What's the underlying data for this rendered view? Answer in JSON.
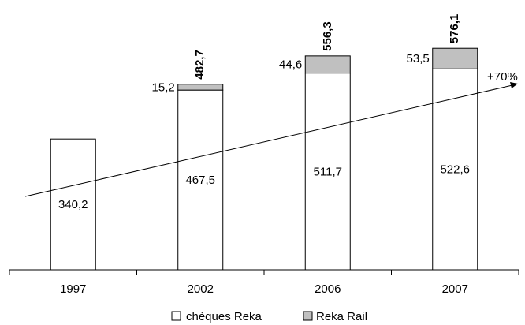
{
  "chart_data": {
    "type": "bar",
    "stacked": true,
    "categories": [
      "1997",
      "2002",
      "2006",
      "2007"
    ],
    "series": [
      {
        "name": "chèques Reka",
        "values": [
          340.2,
          467.5,
          511.7,
          522.6
        ],
        "labels": [
          "340,2",
          "467,5",
          "511,7",
          "522,6"
        ],
        "color": "#ffffff"
      },
      {
        "name": "Reka Rail",
        "values": [
          null,
          15.2,
          44.6,
          53.5
        ],
        "labels": [
          "",
          "15,2",
          "44,6",
          "53,5"
        ],
        "color": "#c0c0c0"
      }
    ],
    "totals": [
      null,
      482.7,
      556.3,
      576.1
    ],
    "total_labels": [
      "",
      "482,7",
      "556,3",
      "576,1"
    ],
    "annotation": "+70%",
    "ylim": [
      0,
      600
    ],
    "grid": false,
    "legend": "bottom"
  }
}
